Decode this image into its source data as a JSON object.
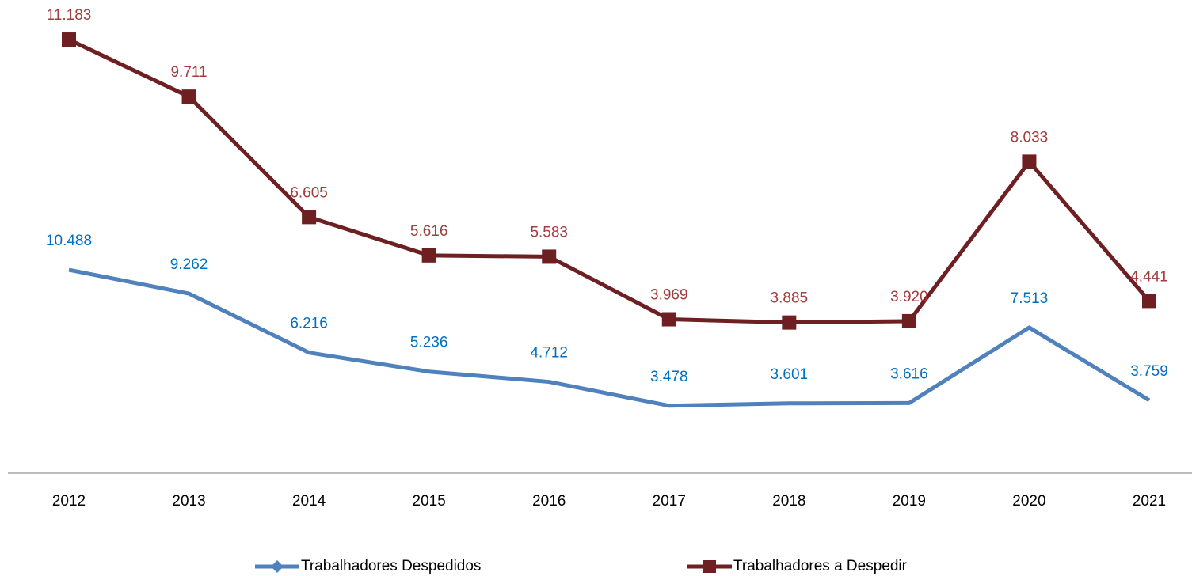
{
  "chart_data": {
    "type": "line",
    "categories": [
      "2012",
      "2013",
      "2014",
      "2015",
      "2016",
      "2017",
      "2018",
      "2019",
      "2020",
      "2021"
    ],
    "series": [
      {
        "name": "Trabalhadores Despedidos",
        "color": "#4f81bd",
        "label_color": "#0070c0",
        "marker": "diamond",
        "axis": "y",
        "values": [
          10488,
          9262,
          6216,
          5236,
          4712,
          3478,
          3601,
          3616,
          7513,
          3759
        ],
        "value_labels": [
          "10.488",
          "9.262",
          "6.216",
          "5.236",
          "4.712",
          "3.478",
          "3.601",
          "3.616",
          "7.513",
          "3.759"
        ]
      },
      {
        "name": "Trabalhadores a Despedir",
        "color": "#6e1f22",
        "label_color": "#a33c3c",
        "marker": "square",
        "axis": "y2",
        "values": [
          11183,
          9711,
          6605,
          5616,
          5583,
          3969,
          3885,
          3920,
          8033,
          4441
        ],
        "value_labels": [
          "11.183",
          "9.711",
          "6.605",
          "5.616",
          "5.583",
          "3.969",
          "3.885",
          "3.920",
          "8.033",
          "4.441"
        ]
      }
    ],
    "ylim": [
      0,
      24000
    ],
    "y2lim": [
      0,
      12000
    ],
    "grid": false,
    "legend": "bottom"
  }
}
